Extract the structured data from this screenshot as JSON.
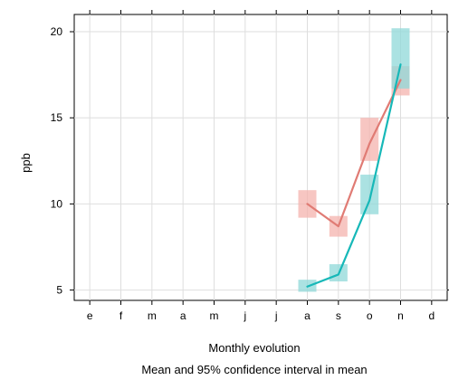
{
  "chart_data": {
    "type": "line",
    "xlabel": "Monthly evolution",
    "subtitle": "Mean and 95% confidence interval in mean",
    "ylabel": "ppb",
    "categories": [
      "e",
      "f",
      "m",
      "a",
      "m",
      "j",
      "j",
      "a",
      "s",
      "o",
      "n",
      "d"
    ],
    "yticks": [
      5,
      10,
      15,
      20
    ],
    "ylim": [
      4.4,
      21.0
    ],
    "grid": true,
    "series": [
      {
        "color": "#e07b74",
        "band_color": "#f4b3ae",
        "points": [
          {
            "category": "a",
            "mean": 10.0,
            "low": 9.2,
            "high": 10.8
          },
          {
            "category": "s",
            "mean": 8.7,
            "low": 8.1,
            "high": 9.3
          },
          {
            "category": "o",
            "mean": 13.5,
            "low": 12.5,
            "high": 15.0
          },
          {
            "category": "n",
            "mean": 17.2,
            "low": 16.3,
            "high": 18.0
          }
        ]
      },
      {
        "color": "#17b8b8",
        "band_color": "#8fd8d8",
        "points": [
          {
            "category": "a",
            "mean": 5.2,
            "low": 4.9,
            "high": 5.6
          },
          {
            "category": "s",
            "mean": 5.9,
            "low": 5.5,
            "high": 6.5
          },
          {
            "category": "o",
            "mean": 10.2,
            "low": 9.4,
            "high": 11.7
          },
          {
            "category": "n",
            "mean": 18.1,
            "low": 16.7,
            "high": 20.2
          }
        ]
      }
    ]
  }
}
